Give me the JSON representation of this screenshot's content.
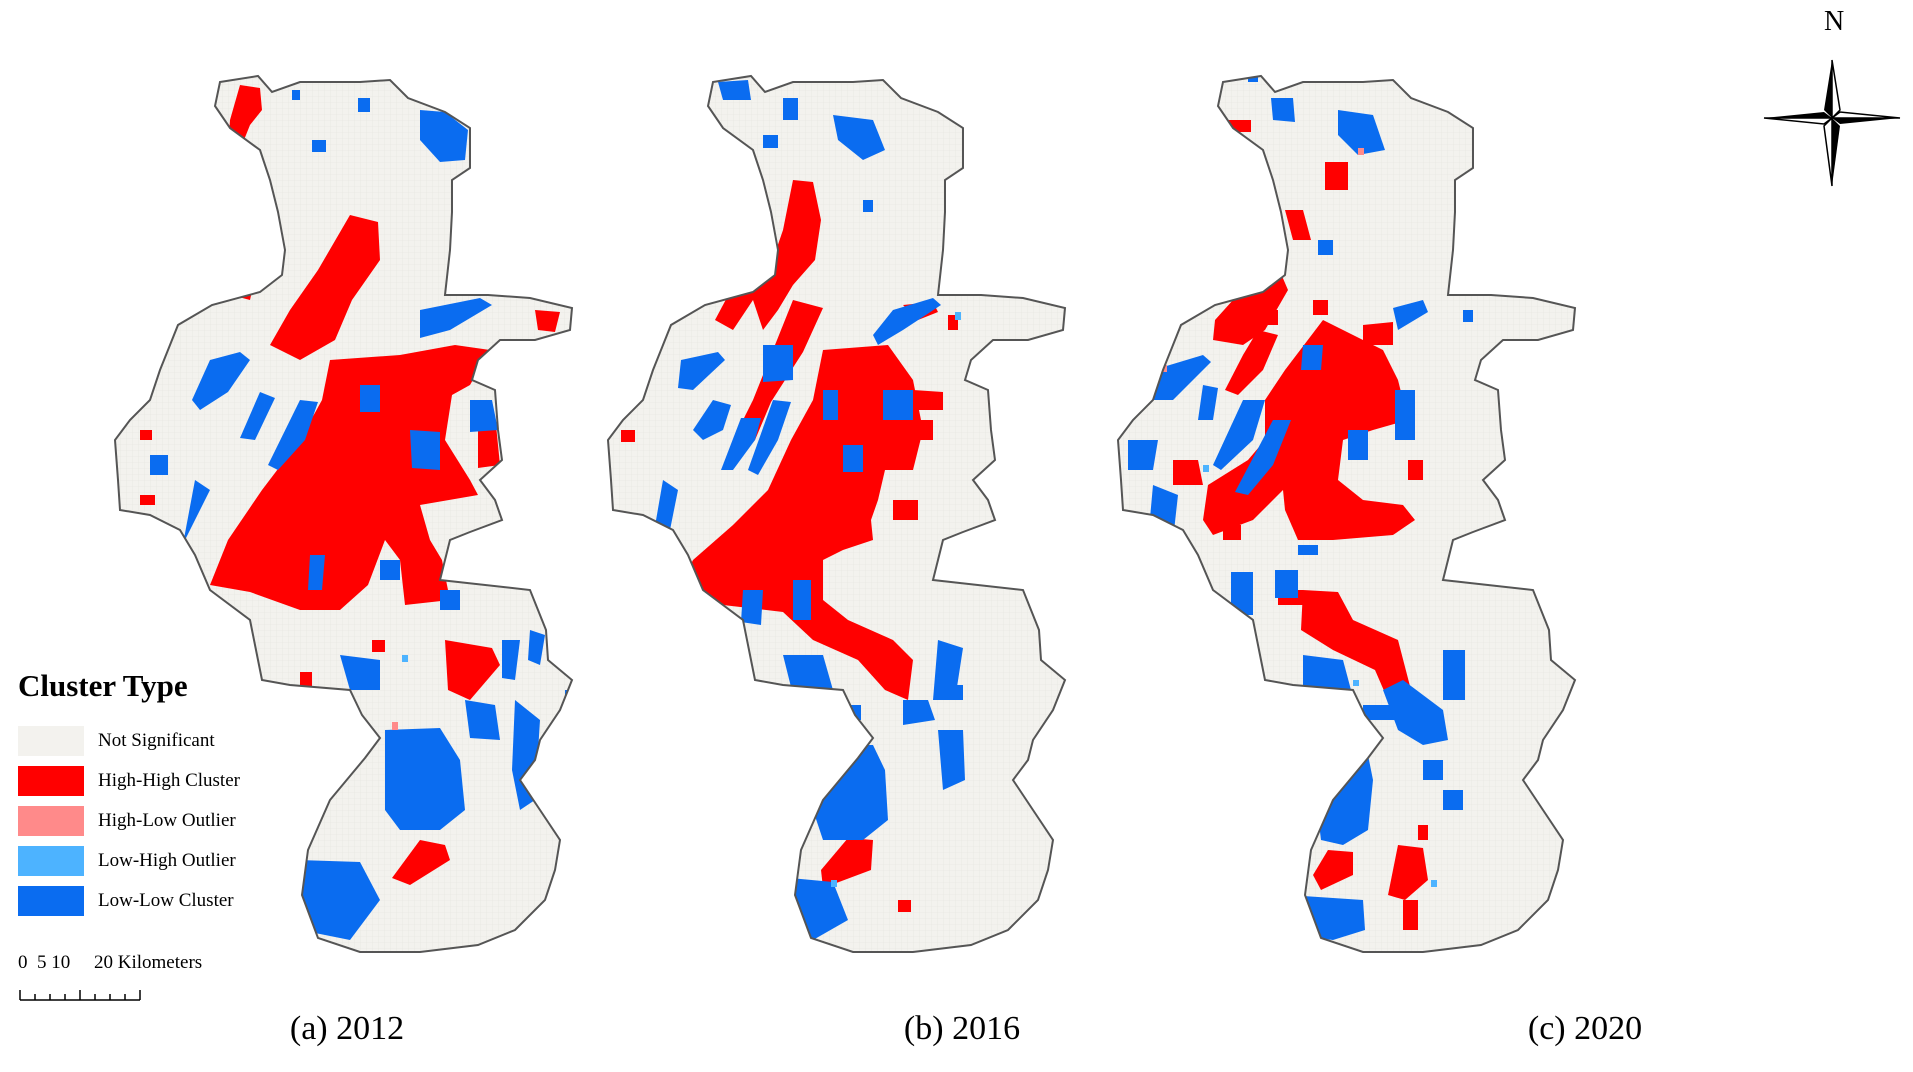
{
  "figure": {
    "legend": {
      "title": "Cluster Type",
      "items": [
        {
          "label": "Not Significant",
          "color": "#F3F2EE",
          "key": "ns"
        },
        {
          "label": "High-High Cluster",
          "color": "#FF0000",
          "key": "hh"
        },
        {
          "label": "High-Low Outlier",
          "color": "#FF8A8A",
          "key": "hl"
        },
        {
          "label": "Low-High Outlier",
          "color": "#4DB3FF",
          "key": "lh"
        },
        {
          "label": "Low-Low Cluster",
          "color": "#0A6CF0",
          "key": "ll"
        }
      ]
    },
    "scale_bar": {
      "ticks": [
        "0",
        "5",
        "10",
        "20"
      ],
      "unit": "Kilometers"
    },
    "north_arrow": {
      "label": "N"
    },
    "panels": [
      {
        "caption": "(a) 2012",
        "year": 2012
      },
      {
        "caption": "(b) 2016",
        "year": 2016
      },
      {
        "caption": "(c) 2020",
        "year": 2020
      }
    ],
    "colors": {
      "outline": "#555555",
      "background": "#FFFFFF"
    }
  }
}
